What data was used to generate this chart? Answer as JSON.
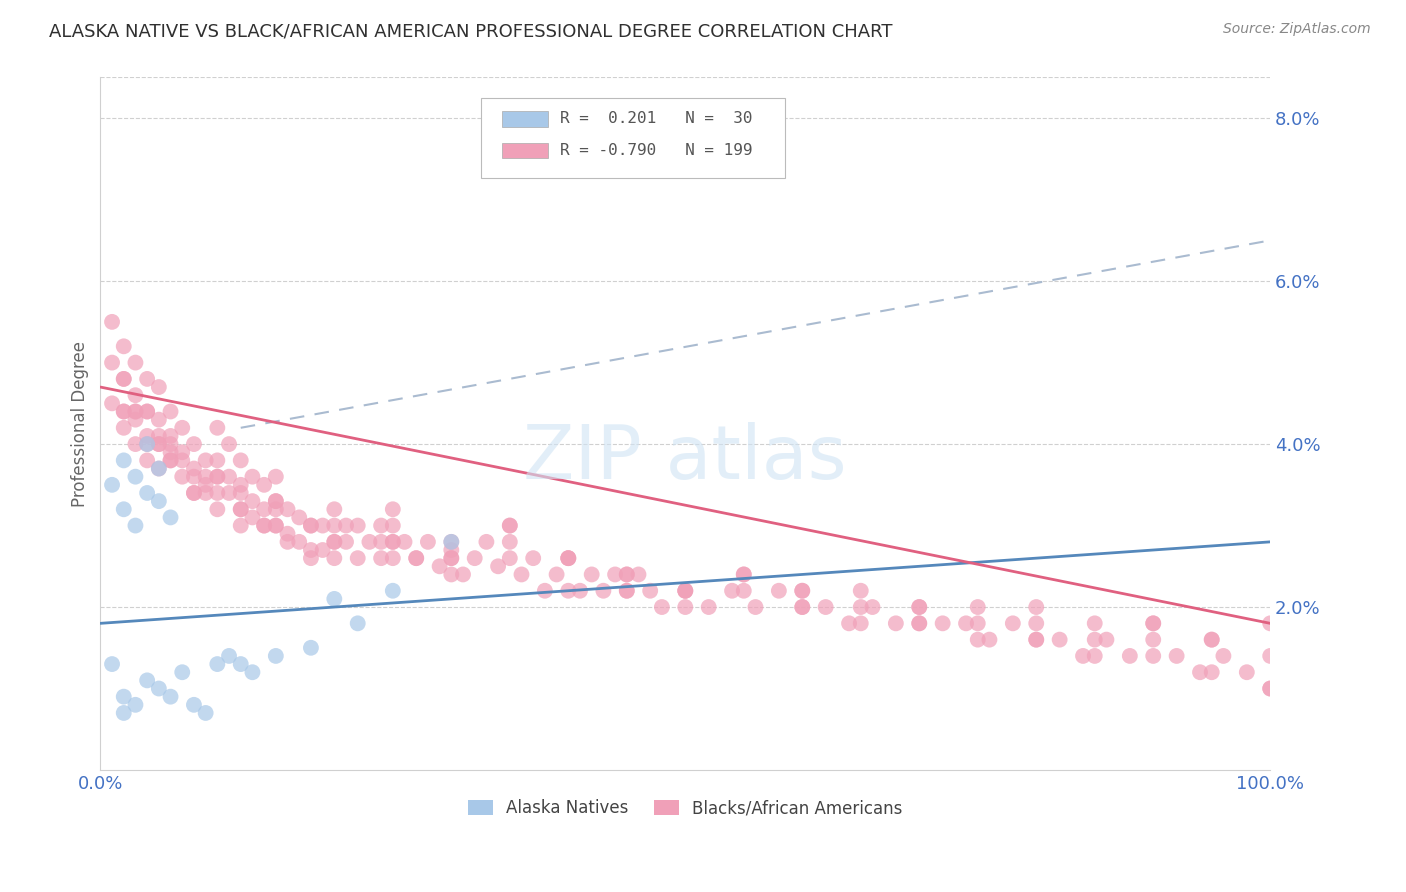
{
  "title": "ALASKA NATIVE VS BLACK/AFRICAN AMERICAN PROFESSIONAL DEGREE CORRELATION CHART",
  "source": "Source: ZipAtlas.com",
  "ylabel": "Professional Degree",
  "xlim": [
    0,
    1
  ],
  "ylim": [
    0,
    0.085
  ],
  "yticks": [
    0.02,
    0.04,
    0.06,
    0.08
  ],
  "ytick_labels": [
    "2.0%",
    "4.0%",
    "6.0%",
    "8.0%"
  ],
  "blue_color": "#a8c8e8",
  "pink_color": "#f0a0b8",
  "blue_line_color": "#5588bb",
  "pink_line_color": "#e06080",
  "dashed_color": "#aabbd0",
  "title_color": "#303030",
  "axis_tick_color": "#4472c4",
  "background_color": "#ffffff",
  "watermark_color": "#d0e4f4",
  "legend_border_color": "#bbbbbb",
  "grid_color": "#d0d0d0",
  "ylabel_color": "#666666",
  "source_color": "#888888",
  "legend_text_color": "#555555",
  "bottom_legend_color": "#444444",
  "alaska_x": [
    0.01,
    0.02,
    0.02,
    0.03,
    0.03,
    0.04,
    0.04,
    0.05,
    0.05,
    0.06,
    0.01,
    0.02,
    0.02,
    0.03,
    0.04,
    0.05,
    0.06,
    0.07,
    0.08,
    0.09,
    0.1,
    0.11,
    0.12,
    0.13,
    0.15,
    0.18,
    0.2,
    0.22,
    0.25,
    0.3
  ],
  "alaska_y": [
    0.035,
    0.038,
    0.032,
    0.036,
    0.03,
    0.034,
    0.04,
    0.037,
    0.033,
    0.031,
    0.013,
    0.009,
    0.007,
    0.008,
    0.011,
    0.01,
    0.009,
    0.012,
    0.008,
    0.007,
    0.013,
    0.014,
    0.013,
    0.012,
    0.014,
    0.015,
    0.021,
    0.018,
    0.022,
    0.028
  ],
  "black_x": [
    0.01,
    0.01,
    0.01,
    0.02,
    0.02,
    0.02,
    0.02,
    0.03,
    0.03,
    0.03,
    0.03,
    0.04,
    0.04,
    0.04,
    0.04,
    0.05,
    0.05,
    0.05,
    0.05,
    0.06,
    0.06,
    0.06,
    0.07,
    0.07,
    0.07,
    0.08,
    0.08,
    0.08,
    0.09,
    0.09,
    0.1,
    0.1,
    0.1,
    0.11,
    0.11,
    0.12,
    0.12,
    0.12,
    0.13,
    0.13,
    0.14,
    0.14,
    0.15,
    0.15,
    0.15,
    0.16,
    0.16,
    0.17,
    0.17,
    0.18,
    0.18,
    0.19,
    0.19,
    0.2,
    0.2,
    0.21,
    0.22,
    0.22,
    0.23,
    0.24,
    0.24,
    0.25,
    0.25,
    0.26,
    0.27,
    0.28,
    0.29,
    0.3,
    0.31,
    0.32,
    0.33,
    0.34,
    0.35,
    0.36,
    0.37,
    0.38,
    0.39,
    0.4,
    0.41,
    0.42,
    0.43,
    0.44,
    0.45,
    0.46,
    0.47,
    0.48,
    0.5,
    0.52,
    0.54,
    0.56,
    0.58,
    0.6,
    0.62,
    0.64,
    0.66,
    0.68,
    0.7,
    0.72,
    0.74,
    0.76,
    0.78,
    0.8,
    0.82,
    0.84,
    0.86,
    0.88,
    0.9,
    0.92,
    0.94,
    0.96,
    0.98,
    1.0,
    0.02,
    0.03,
    0.04,
    0.05,
    0.06,
    0.07,
    0.08,
    0.09,
    0.1,
    0.11,
    0.12,
    0.13,
    0.14,
    0.15,
    0.2,
    0.25,
    0.3,
    0.35,
    0.4,
    0.45,
    0.5,
    0.55,
    0.6,
    0.65,
    0.7,
    0.75,
    0.8,
    0.85,
    0.9,
    0.95,
    1.0,
    0.05,
    0.1,
    0.15,
    0.2,
    0.25,
    0.3,
    0.35,
    0.4,
    0.45,
    0.5,
    0.55,
    0.6,
    0.65,
    0.7,
    0.75,
    0.8,
    0.85,
    0.9,
    0.95,
    1.0,
    0.02,
    0.04,
    0.06,
    0.08,
    0.1,
    0.12,
    0.14,
    0.16,
    0.18,
    0.2,
    0.25,
    0.3,
    0.35,
    0.4,
    0.45,
    0.5,
    0.55,
    0.6,
    0.65,
    0.7,
    0.75,
    0.8,
    0.85,
    0.9,
    0.95,
    1.0,
    0.03,
    0.06,
    0.09,
    0.12,
    0.15,
    0.18,
    0.21,
    0.24,
    0.27,
    0.3
  ],
  "black_y": [
    0.055,
    0.05,
    0.045,
    0.052,
    0.048,
    0.044,
    0.042,
    0.05,
    0.046,
    0.043,
    0.04,
    0.048,
    0.044,
    0.041,
    0.038,
    0.047,
    0.043,
    0.04,
    0.037,
    0.044,
    0.041,
    0.038,
    0.042,
    0.039,
    0.036,
    0.04,
    0.037,
    0.034,
    0.038,
    0.035,
    0.042,
    0.038,
    0.034,
    0.04,
    0.036,
    0.038,
    0.035,
    0.032,
    0.036,
    0.033,
    0.035,
    0.032,
    0.036,
    0.033,
    0.03,
    0.032,
    0.029,
    0.031,
    0.028,
    0.03,
    0.027,
    0.03,
    0.027,
    0.032,
    0.028,
    0.028,
    0.03,
    0.026,
    0.028,
    0.03,
    0.026,
    0.03,
    0.026,
    0.028,
    0.026,
    0.028,
    0.025,
    0.027,
    0.024,
    0.026,
    0.028,
    0.025,
    0.03,
    0.024,
    0.026,
    0.022,
    0.024,
    0.026,
    0.022,
    0.024,
    0.022,
    0.024,
    0.022,
    0.024,
    0.022,
    0.02,
    0.022,
    0.02,
    0.022,
    0.02,
    0.022,
    0.02,
    0.02,
    0.018,
    0.02,
    0.018,
    0.02,
    0.018,
    0.018,
    0.016,
    0.018,
    0.016,
    0.016,
    0.014,
    0.016,
    0.014,
    0.016,
    0.014,
    0.012,
    0.014,
    0.012,
    0.01,
    0.048,
    0.044,
    0.044,
    0.041,
    0.039,
    0.038,
    0.036,
    0.034,
    0.036,
    0.034,
    0.032,
    0.031,
    0.03,
    0.03,
    0.028,
    0.028,
    0.026,
    0.028,
    0.026,
    0.024,
    0.022,
    0.024,
    0.022,
    0.022,
    0.02,
    0.018,
    0.02,
    0.018,
    0.018,
    0.016,
    0.018,
    0.04,
    0.036,
    0.033,
    0.03,
    0.032,
    0.028,
    0.03,
    0.026,
    0.024,
    0.022,
    0.024,
    0.022,
    0.02,
    0.018,
    0.02,
    0.018,
    0.016,
    0.018,
    0.016,
    0.014,
    0.044,
    0.04,
    0.038,
    0.034,
    0.032,
    0.03,
    0.03,
    0.028,
    0.026,
    0.026,
    0.028,
    0.024,
    0.026,
    0.022,
    0.022,
    0.02,
    0.022,
    0.02,
    0.018,
    0.018,
    0.016,
    0.016,
    0.014,
    0.014,
    0.012,
    0.01,
    0.044,
    0.04,
    0.036,
    0.034,
    0.032,
    0.03,
    0.03,
    0.028,
    0.026,
    0.026
  ],
  "alaska_line_x": [
    0.0,
    1.0
  ],
  "alaska_line_y": [
    0.018,
    0.028
  ],
  "black_line_x": [
    0.0,
    1.0
  ],
  "black_line_y": [
    0.047,
    0.018
  ],
  "dashed_line_x": [
    0.12,
    1.0
  ],
  "dashed_line_y": [
    0.042,
    0.065
  ]
}
